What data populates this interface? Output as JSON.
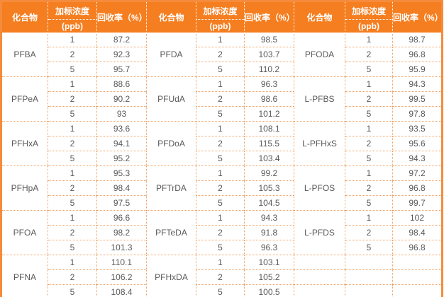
{
  "table": {
    "header": {
      "compound": "化合物",
      "concentration_line1": "加标浓度",
      "concentration_line2": "(ppb)",
      "recovery": "回收率（%）"
    },
    "colors": {
      "header_bg": "#f57e20",
      "header_text": "#ffffff",
      "outer_border": "#f58b3c",
      "grid_dotted": "#f0a164",
      "cell_text": "#595959"
    },
    "groups": [
      {
        "compounds": [
          {
            "name": "PFBA",
            "rows": [
              [
                "1",
                "87.2"
              ],
              [
                "2",
                "92.3"
              ],
              [
                "5",
                "95.7"
              ]
            ]
          },
          {
            "name": "PFPeA",
            "rows": [
              [
                "1",
                "88.6"
              ],
              [
                "2",
                "90.2"
              ],
              [
                "5",
                "93"
              ]
            ]
          },
          {
            "name": "PFHxA",
            "rows": [
              [
                "1",
                "93.6"
              ],
              [
                "2",
                "94.1"
              ],
              [
                "5",
                "95.2"
              ]
            ]
          },
          {
            "name": "PFHpA",
            "rows": [
              [
                "1",
                "95.3"
              ],
              [
                "2",
                "98.4"
              ],
              [
                "5",
                "97.5"
              ]
            ]
          },
          {
            "name": "PFOA",
            "rows": [
              [
                "1",
                "96.6"
              ],
              [
                "2",
                "98.2"
              ],
              [
                "5",
                "101.3"
              ]
            ]
          },
          {
            "name": "PFNA",
            "rows": [
              [
                "1",
                "110.1"
              ],
              [
                "2",
                "106.2"
              ],
              [
                "5",
                "108.4"
              ]
            ]
          }
        ]
      },
      {
        "compounds": [
          {
            "name": "PFDA",
            "rows": [
              [
                "1",
                "98.5"
              ],
              [
                "2",
                "103.7"
              ],
              [
                "5",
                "110.2"
              ]
            ]
          },
          {
            "name": "PFUdA",
            "rows": [
              [
                "1",
                "96.3"
              ],
              [
                "2",
                "98.6"
              ],
              [
                "5",
                "101.2"
              ]
            ]
          },
          {
            "name": "PFDoA",
            "rows": [
              [
                "1",
                "108.1"
              ],
              [
                "2",
                "115.5"
              ],
              [
                "5",
                "103.4"
              ]
            ]
          },
          {
            "name": "PFTrDA",
            "rows": [
              [
                "1",
                "99.2"
              ],
              [
                "2",
                "105.3"
              ],
              [
                "5",
                "104.5"
              ]
            ]
          },
          {
            "name": "PFTeDA",
            "rows": [
              [
                "1",
                "94.3"
              ],
              [
                "2",
                "91.8"
              ],
              [
                "5",
                "96.3"
              ]
            ]
          },
          {
            "name": "PFHxDA",
            "rows": [
              [
                "1",
                "103.1"
              ],
              [
                "2",
                "105.2"
              ],
              [
                "5",
                "100.5"
              ]
            ]
          }
        ]
      },
      {
        "compounds": [
          {
            "name": "PFODA",
            "rows": [
              [
                "1",
                "98.7"
              ],
              [
                "2",
                "96.8"
              ],
              [
                "5",
                "95.9"
              ]
            ]
          },
          {
            "name": "L-PFBS",
            "rows": [
              [
                "1",
                "94.3"
              ],
              [
                "2",
                "99.5"
              ],
              [
                "5",
                "97.8"
              ]
            ]
          },
          {
            "name": "L-PFHxS",
            "rows": [
              [
                "1",
                "93.5"
              ],
              [
                "2",
                "95.6"
              ],
              [
                "5",
                "94.3"
              ]
            ]
          },
          {
            "name": "L-PFOS",
            "rows": [
              [
                "1",
                "97.2"
              ],
              [
                "2",
                "96.8"
              ],
              [
                "5",
                "99.7"
              ]
            ]
          },
          {
            "name": "L-PFDS",
            "rows": [
              [
                "1",
                "102"
              ],
              [
                "2",
                "98.4"
              ],
              [
                "5",
                "96.8"
              ]
            ]
          },
          {
            "name": "",
            "merged": false,
            "rows": [
              [
                "",
                ""
              ],
              [
                "",
                ""
              ],
              [
                "",
                ""
              ]
            ]
          }
        ]
      }
    ]
  }
}
